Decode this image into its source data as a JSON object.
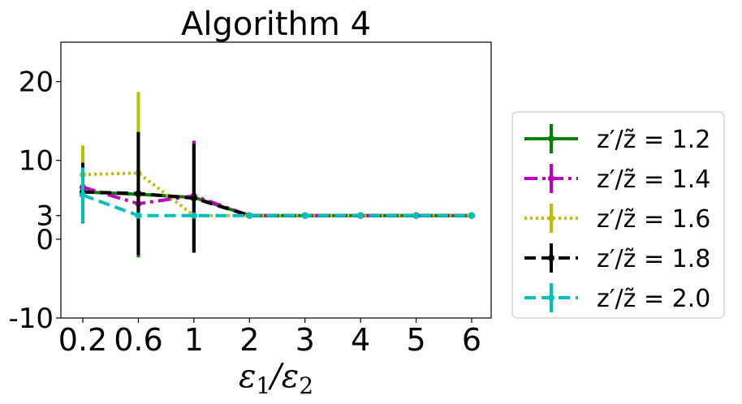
{
  "chart_data": {
    "type": "line",
    "title": "Algorithm 4",
    "xlabel": "ε₁/ε₂",
    "ylabel": "",
    "categories": [
      "0.2",
      "0.6",
      "1",
      "2",
      "3",
      "4",
      "5",
      "6"
    ],
    "yticks": [
      "-10",
      "0",
      "3",
      "10",
      "20"
    ],
    "ylim": [
      -10,
      25
    ],
    "grid": false,
    "legend_position": "right",
    "series": [
      {
        "name": "z′/z̃ = 1.2",
        "color": "#008000",
        "style": "solid",
        "values": [
          6,
          5.7,
          5.3,
          3,
          3,
          3,
          3,
          3
        ],
        "err": [
          4,
          8,
          7,
          0,
          0,
          0,
          0,
          0
        ]
      },
      {
        "name": "z′/z̃ = 1.4",
        "color": "#bf00bf",
        "style": "dashdot",
        "values": [
          6.6,
          4.5,
          5.5,
          3,
          3,
          3,
          3,
          3
        ],
        "err": [
          1,
          0,
          7,
          0,
          0,
          0,
          0,
          0
        ]
      },
      {
        "name": "z′/z̃ = 1.6",
        "color": "#bfbf00",
        "style": "dotted",
        "values": [
          8.2,
          8.4,
          3,
          3,
          3,
          3,
          3,
          3
        ],
        "err": [
          3.7,
          10.3,
          0,
          0,
          0,
          0,
          0,
          0
        ]
      },
      {
        "name": "z′/z̃ = 1.8",
        "color": "#000000",
        "style": "dashed",
        "values": [
          6,
          5.8,
          5.2,
          3,
          3,
          3,
          3,
          3
        ],
        "err": [
          3.7,
          7.8,
          6.9,
          0,
          0,
          0,
          0,
          0
        ]
      },
      {
        "name": "z′/z̃ = 2.0",
        "color": "#00bfbf",
        "style": "dashed",
        "values": [
          5.6,
          3,
          3,
          3,
          3,
          3,
          3,
          3
        ],
        "err": [
          3.5,
          0,
          0,
          0,
          0,
          0,
          0,
          0
        ]
      }
    ]
  }
}
